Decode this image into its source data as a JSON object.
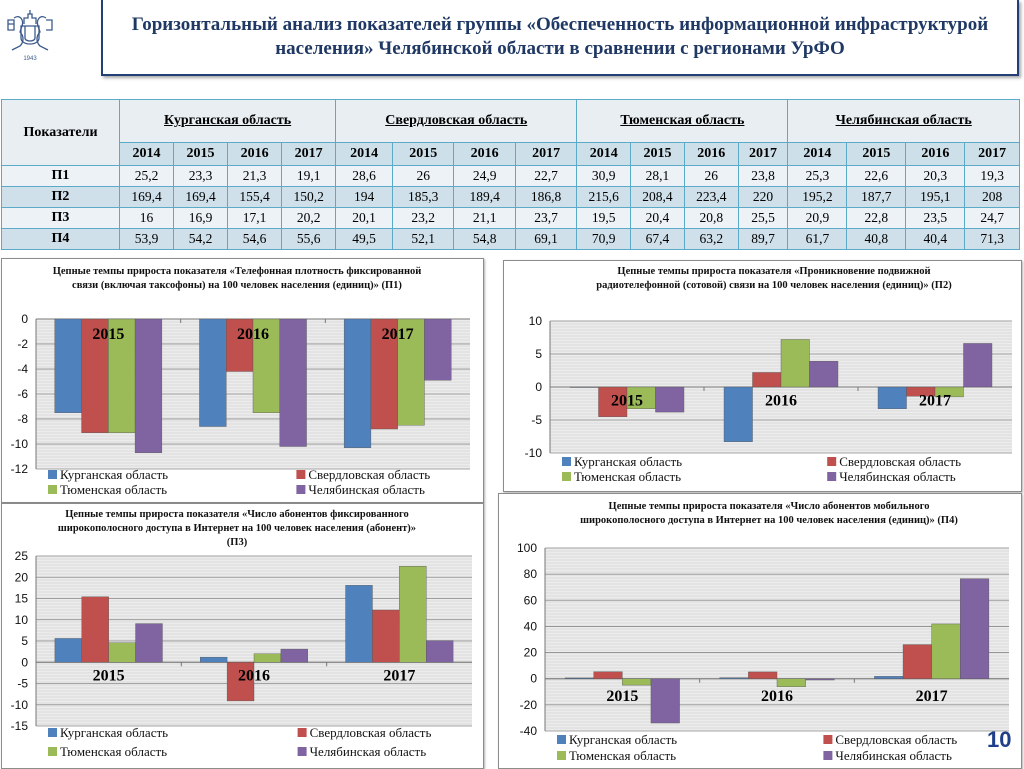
{
  "header": {
    "title": "Горизонтальный анализ показателей группы «Обеспеченность информационной инфраструктурой населения» Челябинской области в сравнении с регионами УрФО",
    "logo_text": "1943"
  },
  "table": {
    "row_header": "Показатели",
    "regions": [
      "Курганская область",
      "Свердловская область",
      "Тюменская область",
      "Челябинская область"
    ],
    "years": [
      "2014",
      "2015",
      "2016",
      "2017"
    ],
    "rows": [
      {
        "label": "П1",
        "values": [
          "25,2",
          "23,3",
          "21,3",
          "19,1",
          "28,6",
          "26",
          "24,9",
          "22,7",
          "30,9",
          "28,1",
          "26",
          "23,8",
          "25,3",
          "22,6",
          "20,3",
          "19,3"
        ]
      },
      {
        "label": "П2",
        "values": [
          "169,4",
          "169,4",
          "155,4",
          "150,2",
          "194",
          "185,3",
          "189,4",
          "186,8",
          "215,6",
          "208,4",
          "223,4",
          "220",
          "195,2",
          "187,7",
          "195,1",
          "208"
        ]
      },
      {
        "label": "П3",
        "values": [
          "16",
          "16,9",
          "17,1",
          "20,2",
          "20,1",
          "23,2",
          "21,1",
          "23,7",
          "19,5",
          "20,4",
          "20,8",
          "25,5",
          "20,9",
          "22,8",
          "23,5",
          "24,7"
        ]
      },
      {
        "label": "П4",
        "values": [
          "53,9",
          "54,2",
          "54,6",
          "55,6",
          "49,5",
          "52,1",
          "54,8",
          "69,1",
          "70,9",
          "67,4",
          "63,2",
          "89,7",
          "61,7",
          "40,8",
          "40,4",
          "71,3"
        ]
      }
    ]
  },
  "colors": {
    "Курганская область": "#4f81bd",
    "Свердловская область": "#c0504d",
    "Тюменская область": "#9bbb59",
    "Челябинская область": "#8064a2"
  },
  "chart_data": [
    {
      "type": "bar",
      "title": "Цепные темпы прироста показателя «Телефонная плотность фиксированной связи (включая таксофоны) на 100 человек населения (единиц)»  (П1)",
      "categories": [
        "2015",
        "2016",
        "2017"
      ],
      "ylim": [
        -12,
        0
      ],
      "yticks": [
        0,
        -2,
        -4,
        -6,
        -8,
        -10,
        -12
      ],
      "legend": "bottom",
      "series": [
        {
          "name": "Курганская область",
          "values": [
            -7.5,
            -8.6,
            -10.3
          ]
        },
        {
          "name": "Свердловская область",
          "values": [
            -9.1,
            -4.2,
            -8.8
          ]
        },
        {
          "name": "Тюменская область",
          "values": [
            -9.1,
            -7.5,
            -8.5
          ]
        },
        {
          "name": "Челябинская область",
          "values": [
            -10.7,
            -10.2,
            -4.9
          ]
        }
      ]
    },
    {
      "type": "bar",
      "title": "Цепные темпы прироста показателя «Проникновение подвижной радиотелефонной (сотовой) связи на 100 человек населения (единиц)»  (П2)",
      "categories": [
        "2015",
        "2016",
        "2017"
      ],
      "ylim": [
        -10,
        10
      ],
      "yticks": [
        10,
        5,
        0,
        -5,
        -10
      ],
      "legend": "bottom",
      "series": [
        {
          "name": "Курганская область",
          "values": [
            0,
            -8.3,
            -3.3
          ]
        },
        {
          "name": "Свердловская область",
          "values": [
            -4.5,
            2.2,
            -1.4
          ]
        },
        {
          "name": "Тюменская область",
          "values": [
            -3.3,
            7.2,
            -1.5
          ]
        },
        {
          "name": "Челябинская область",
          "values": [
            -3.8,
            3.9,
            6.6
          ]
        }
      ]
    },
    {
      "type": "bar",
      "title": "Цепные темпы прироста показателя «Число абонентов фиксированного широкополосного доступа в Интернет на 100 человек населения (абонент)» (П3)",
      "categories": [
        "2015",
        "2016",
        "2017"
      ],
      "ylim": [
        -15,
        25
      ],
      "yticks": [
        25,
        20,
        15,
        10,
        5,
        0,
        -5,
        -10,
        -15
      ],
      "legend": "bottom",
      "series": [
        {
          "name": "Курганская область",
          "values": [
            5.6,
            1.2,
            18.1
          ]
        },
        {
          "name": "Свердловская область",
          "values": [
            15.4,
            -9.1,
            12.3
          ]
        },
        {
          "name": "Тюменская область",
          "values": [
            4.6,
            2.0,
            22.6
          ]
        },
        {
          "name": "Челябинская область",
          "values": [
            9.1,
            3.1,
            5.1
          ]
        }
      ]
    },
    {
      "type": "bar",
      "title": "Цепные темпы прироста показателя «Число абонентов мобильного широкополосного доступа в Интернет на 100 человек населения (единиц)» (П4)",
      "categories": [
        "2015",
        "2016",
        "2017"
      ],
      "ylim": [
        -40,
        100
      ],
      "yticks": [
        100,
        80,
        60,
        40,
        20,
        0,
        -20,
        -40
      ],
      "legend": "bottom",
      "series": [
        {
          "name": "Курганская область",
          "values": [
            0.6,
            0.7,
            1.8
          ]
        },
        {
          "name": "Свердловская область",
          "values": [
            5.3,
            5.2,
            26.1
          ]
        },
        {
          "name": "Тюменская область",
          "values": [
            -4.9,
            -6.2,
            41.9
          ]
        },
        {
          "name": "Челябинская область",
          "values": [
            -33.9,
            -1.0,
            76.5
          ]
        }
      ]
    }
  ],
  "footer": {
    "page_number": "10"
  }
}
